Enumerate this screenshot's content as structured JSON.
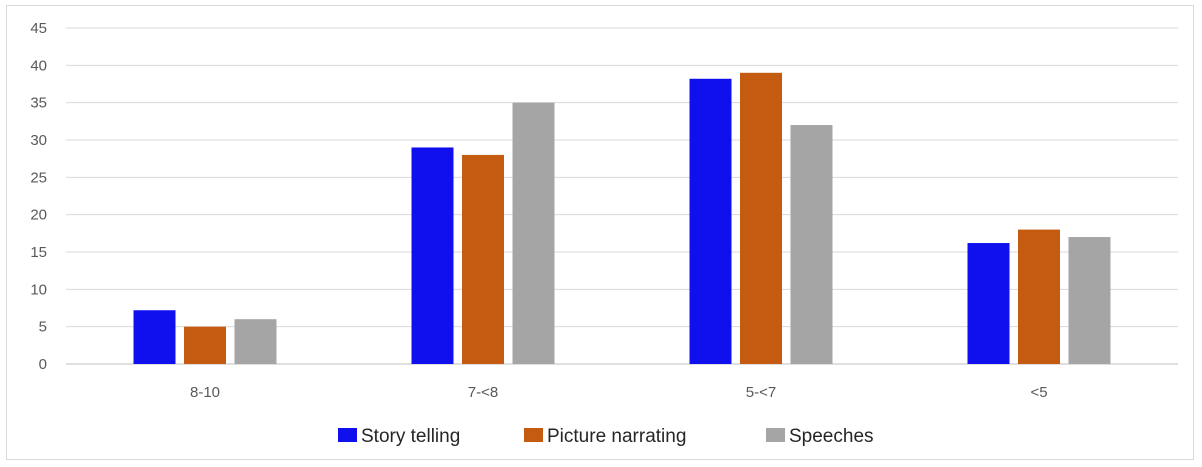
{
  "chart_data": {
    "type": "bar",
    "categories": [
      "8-10",
      "7-<8",
      "5-<7",
      "<5"
    ],
    "series": [
      {
        "name": "Story telling",
        "color": "#1010ee",
        "values": [
          7.2,
          29,
          38.2,
          16.2
        ]
      },
      {
        "name": "Picture narrating",
        "color": "#c55a11",
        "values": [
          5,
          28,
          39,
          18
        ]
      },
      {
        "name": "Speeches",
        "color": "#a5a5a5",
        "values": [
          6,
          35,
          32,
          17
        ]
      }
    ],
    "ylim": [
      0,
      45
    ],
    "yticks": [
      "0",
      "5",
      "10",
      "15",
      "20",
      "25",
      "30",
      "35",
      "40",
      "45"
    ],
    "grid": true,
    "legend_position": "bottom"
  }
}
